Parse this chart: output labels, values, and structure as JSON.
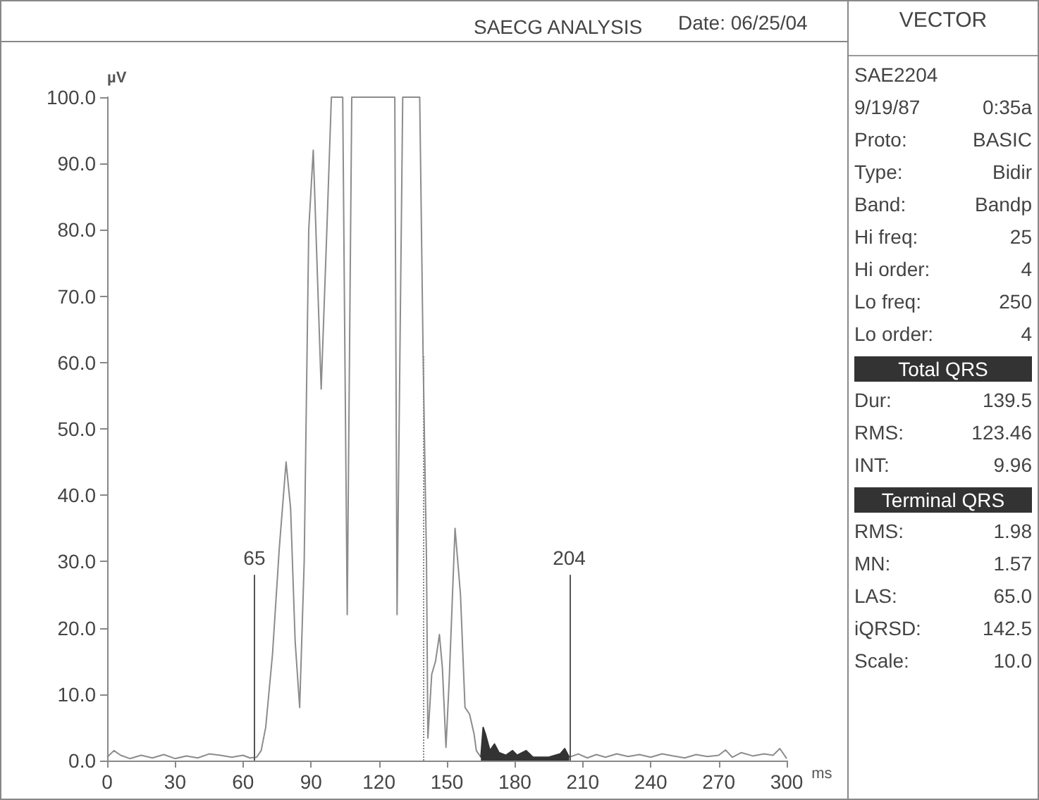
{
  "chart_data": [
    {
      "type": "line",
      "title": "SAECG ANALYSIS",
      "annotations": [
        "Date: 06/25/04"
      ],
      "xlabel": "ms",
      "ylabel": "µV",
      "xlim": [
        0,
        300
      ],
      "xticks": [
        0,
        30,
        60,
        90,
        120,
        150,
        180,
        210,
        240,
        270,
        300
      ],
      "ylim": [
        0,
        100
      ],
      "yticks": [
        {
          "value": 0,
          "label": "0.0"
        },
        {
          "value": 10,
          "label": "10.0"
        },
        {
          "value": 20,
          "label": "20.0"
        },
        {
          "value": 30,
          "label": "30.0"
        },
        {
          "value": 40,
          "label": "40.0"
        },
        {
          "value": 50,
          "label": "50.0"
        },
        {
          "value": 60,
          "label": "60.0"
        },
        {
          "value": 70,
          "label": "70.0"
        },
        {
          "value": 80,
          "label": "80.0"
        },
        {
          "value": 90,
          "label": "90.0"
        },
        {
          "value": 100,
          "label": "100.0"
        }
      ],
      "grid": false,
      "marker": "none",
      "ref_lines": [
        {
          "axis": "x",
          "value": 65,
          "label": "65",
          "color": "#555555",
          "line_style": "solid"
        },
        {
          "axis": "x",
          "value": 204,
          "label": "204",
          "color": "#555555",
          "line_style": "solid"
        },
        {
          "axis": "x",
          "value": 139.5,
          "label": null,
          "color": "#888888",
          "line_style": "dotted"
        }
      ],
      "series": [
        {
          "type": "line",
          "color": "#8c8c8c",
          "x": [
            0,
            3,
            6,
            10,
            15,
            20,
            25,
            30,
            35,
            40,
            45,
            50,
            55,
            60,
            63,
            66,
            68,
            70,
            73,
            76,
            79,
            81,
            83,
            85,
            87,
            89,
            91,
            94.5,
            97,
            99,
            104,
            105,
            106,
            108,
            127,
            128,
            130.5,
            138,
            139.5,
            141,
            141.6,
            143.3,
            145,
            146.7,
            148,
            149.6,
            151,
            153.6,
            156,
            158,
            160,
            162,
            163,
            165,
            185,
            204,
            208,
            212,
            216,
            220,
            225,
            230,
            235,
            240,
            245,
            250,
            255,
            260,
            265,
            270,
            273,
            276,
            280,
            285,
            290,
            294,
            297,
            300
          ],
          "values": [
            0.5,
            1.5,
            0.8,
            0.3,
            0.8,
            0.4,
            0.9,
            0.3,
            0.7,
            0.4,
            1.0,
            0.8,
            0.5,
            0.8,
            0.4,
            0.5,
            1.5,
            5,
            16,
            32,
            45,
            38,
            18,
            8,
            30,
            80,
            92,
            56,
            80,
            100,
            100,
            60,
            22,
            100,
            100,
            22,
            100,
            100,
            61,
            30,
            3.4,
            13,
            15,
            19,
            14,
            2,
            12,
            35,
            25,
            8,
            7,
            4,
            1.5,
            0.5,
            null,
            0.5,
            1.0,
            0.4,
            0.9,
            0.5,
            1.0,
            0.6,
            0.9,
            0.5,
            1.0,
            0.7,
            0.4,
            0.9,
            0.6,
            0.8,
            1.6,
            0.5,
            1.2,
            0.7,
            1.0,
            0.8,
            1.8,
            0.3
          ]
        },
        {
          "type": "area",
          "color": "#333333",
          "x": [
            165,
            166,
            167,
            169,
            171,
            173,
            176,
            179,
            181,
            185,
            188,
            195,
            200,
            202,
            204
          ],
          "values": [
            0.5,
            5,
            4,
            1.5,
            2.5,
            1.2,
            0.8,
            1.5,
            0.8,
            1.5,
            0.5,
            0.5,
            1.0,
            1.8,
            0.5
          ]
        }
      ]
    },
    {
      "type": "other",
      "title": "VECTOR",
      "annotations": [
        "SAE2204",
        "9/19/87\t0:35a",
        "Proto:\tBASIC",
        "Type:\tBidir",
        "Band:\tBandp",
        "Hi freq:\t25",
        "Hi order:\t4",
        "Lo freq:\t250",
        "Lo order:\t4"
      ]
    },
    {
      "type": "other",
      "title": "Total QRS",
      "annotations": [
        "Dur:\t139.5",
        "RMS:\t123.46",
        "INT:\t9.96"
      ]
    },
    {
      "type": "other",
      "title": "Terminal QRS",
      "annotations": [
        "RMS:\t1.98",
        "MN:\t1.57",
        "LAS:\t65.0",
        "iQRSD:\t142.5",
        "Scale:\t10.0"
      ]
    }
  ]
}
